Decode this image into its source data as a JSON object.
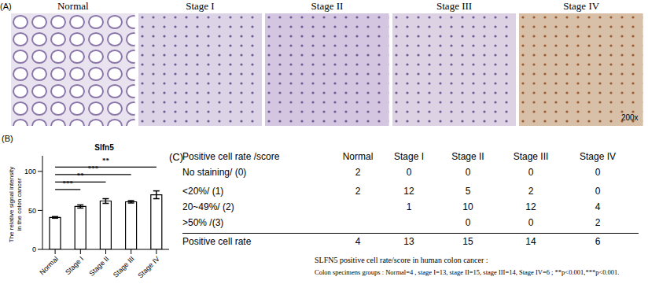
{
  "panel_a": {
    "label": "(A)",
    "images": [
      "Normal",
      "Stage I",
      "Stage II",
      "Stage III",
      "Stage IV"
    ],
    "magnification": "200x"
  },
  "chart_data": {
    "type": "bar",
    "panel_label": "(B)",
    "title": "Slfn5",
    "ylabel_lines": [
      "The relative signal intensity",
      "in the colon cancer"
    ],
    "categories": [
      "Normal",
      "Stage I",
      "Stage II",
      "Stage III",
      "Stage IV"
    ],
    "values": [
      41,
      55,
      62,
      61,
      70
    ],
    "errors": [
      1,
      2,
      3,
      1.5,
      5
    ],
    "ylim": [
      0,
      120
    ],
    "yticks": [
      0,
      50,
      100
    ],
    "color": "#ffffff",
    "significance": [
      {
        "from": "Normal",
        "to": "Stage I",
        "label": "***"
      },
      {
        "from": "Normal",
        "to": "Stage II",
        "label": "**"
      },
      {
        "from": "Normal",
        "to": "Stage III",
        "label": "***"
      },
      {
        "from": "Normal",
        "to": "Stage IV",
        "label": "**"
      }
    ]
  },
  "table": {
    "panel_label": "(C)",
    "header": [
      "Positive cell rate /score",
      "Normal",
      "Stage I",
      "Stage II",
      "Stage III",
      "Stage IV"
    ],
    "rows": [
      [
        "No staining/ (0)",
        2,
        0,
        0,
        0,
        0
      ],
      [
        "<20%/ (1)",
        2,
        12,
        5,
        2,
        0
      ],
      [
        "20~49%/ (2)",
        null,
        1,
        10,
        12,
        4
      ],
      [
        ">50% /(3)",
        null,
        null,
        0,
        0,
        2
      ]
    ],
    "total_row": [
      "Positive cell rate",
      4,
      13,
      15,
      14,
      6
    ],
    "notes": [
      "SLFN5 positive cell rate/score in human colon cancer :",
      "Colon specimens groups : Normal=4 , stage I=13, stage II=15, stage III=14, Stage IV=6 ; **p<0.001,***p<0.001."
    ]
  }
}
